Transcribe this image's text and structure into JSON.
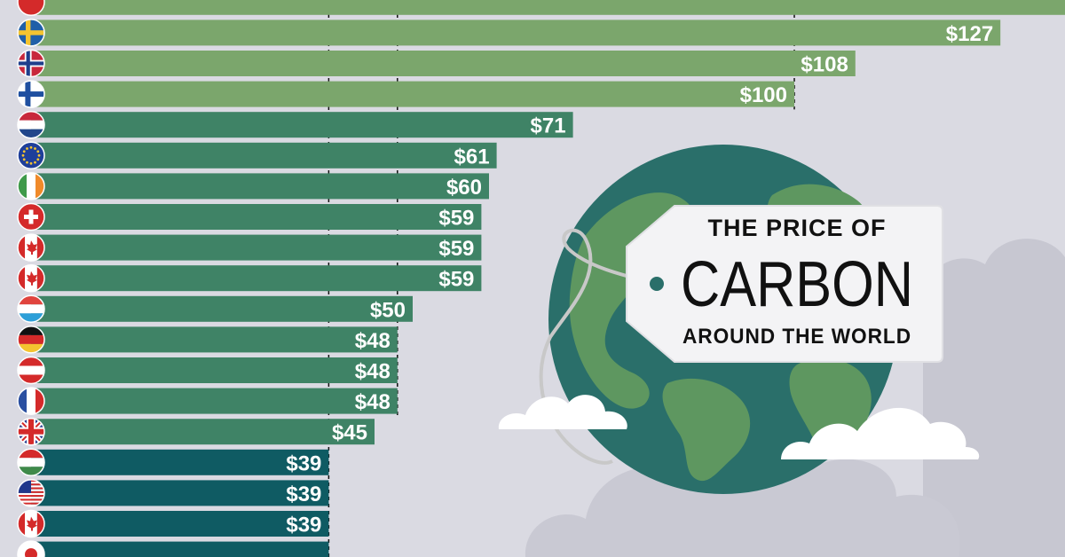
{
  "title": {
    "line1": "THE PRICE OF",
    "line2": "CARBON",
    "line3": "AROUND THE WORLD"
  },
  "colors": {
    "background": "#dadae2",
    "tier_high": "#7ba66c",
    "tier_mid": "#3f8366",
    "tier_low": "#0f5b63",
    "globe_ocean": "#2a6f6a",
    "globe_land": "#5e9760",
    "cloud": "#ffffff",
    "cloud_back": "#c7c7d1"
  },
  "chart_data": {
    "type": "bar",
    "orientation": "horizontal",
    "currency": "$",
    "rows": [
      {
        "flag": "red-circle-flag-icon",
        "value": null,
        "label": "",
        "tier": "high"
      },
      {
        "flag": "sweden-flag-icon",
        "value": 127,
        "label": "$127",
        "tier": "high"
      },
      {
        "flag": "norway-flag-icon",
        "value": 108,
        "label": "$108",
        "tier": "high"
      },
      {
        "flag": "finland-flag-icon",
        "value": 100,
        "label": "$100",
        "tier": "high"
      },
      {
        "flag": "netherlands-flag-icon",
        "value": 71,
        "label": "$71",
        "tier": "mid"
      },
      {
        "flag": "eu-flag-icon",
        "value": 61,
        "label": "$61",
        "tier": "mid"
      },
      {
        "flag": "ireland-flag-icon",
        "value": 60,
        "label": "$60",
        "tier": "mid"
      },
      {
        "flag": "switzerland-flag-icon",
        "value": 59,
        "label": "$59",
        "tier": "mid"
      },
      {
        "flag": "canada-flag-icon",
        "value": 59,
        "label": "$59",
        "tier": "mid"
      },
      {
        "flag": "canada-flag-icon",
        "value": 59,
        "label": "$59",
        "tier": "mid"
      },
      {
        "flag": "luxembourg-flag-icon",
        "value": 50,
        "label": "$50",
        "tier": "mid"
      },
      {
        "flag": "germany-flag-icon",
        "value": 48,
        "label": "$48",
        "tier": "mid"
      },
      {
        "flag": "austria-flag-icon",
        "value": 48,
        "label": "$48",
        "tier": "mid"
      },
      {
        "flag": "france-flag-icon",
        "value": 48,
        "label": "$48",
        "tier": "mid"
      },
      {
        "flag": "uk-flag-icon",
        "value": 45,
        "label": "$45",
        "tier": "mid"
      },
      {
        "flag": "hungary-flag-icon",
        "value": 39,
        "label": "$39",
        "tier": "low"
      },
      {
        "flag": "usa-flag-icon",
        "value": 39,
        "label": "$39",
        "tier": "low"
      },
      {
        "flag": "canada-flag-icon",
        "value": 39,
        "label": "$39",
        "tier": "low"
      },
      {
        "flag": "japan-flag-icon",
        "value": null,
        "label": "",
        "tier": "low"
      }
    ],
    "reference_lines": [
      39,
      48,
      100
    ],
    "grid": false,
    "legend": "none"
  }
}
